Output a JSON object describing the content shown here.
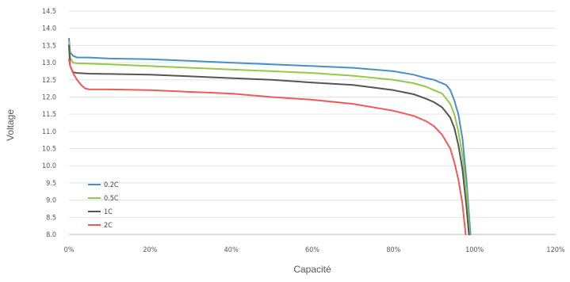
{
  "chart_data": {
    "type": "line",
    "title": "",
    "xlabel": "Capacité",
    "ylabel": "Voltage",
    "x_ticks": [
      "0%",
      "20%",
      "40%",
      "60%",
      "80%",
      "100%",
      "120%"
    ],
    "y_ticks": [
      "8.0",
      "8.5",
      "9.0",
      "9.5",
      "10.0",
      "10.5",
      "11.0",
      "11.5",
      "12.0",
      "12.5",
      "13.0",
      "13.5",
      "14.0",
      "14.5"
    ],
    "xlim": [
      0,
      120
    ],
    "ylim": [
      8.0,
      14.5
    ],
    "grid": "horizontal",
    "legend_position": "bottom-left",
    "series": [
      {
        "name": "0.2C",
        "color": "#4a8fc1",
        "x": [
          0,
          0.3,
          1,
          2,
          5,
          10,
          20,
          30,
          40,
          50,
          60,
          70,
          75,
          80,
          85,
          88,
          90,
          92,
          93,
          94,
          95,
          96,
          97,
          98,
          99
        ],
        "y": [
          13.7,
          13.3,
          13.2,
          13.15,
          13.15,
          13.12,
          13.1,
          13.05,
          13.0,
          12.95,
          12.9,
          12.85,
          12.8,
          12.75,
          12.65,
          12.55,
          12.5,
          12.4,
          12.35,
          12.2,
          11.9,
          11.5,
          10.8,
          9.6,
          8.0
        ]
      },
      {
        "name": "0.5C",
        "color": "#92c94a",
        "x": [
          0,
          0.3,
          1,
          2,
          5,
          10,
          20,
          30,
          40,
          50,
          60,
          70,
          80,
          85,
          88,
          90,
          92,
          94,
          95,
          96,
          97,
          98,
          98.8
        ],
        "y": [
          13.6,
          13.15,
          13.0,
          12.98,
          12.97,
          12.95,
          12.9,
          12.85,
          12.8,
          12.75,
          12.7,
          12.62,
          12.5,
          12.4,
          12.3,
          12.2,
          12.1,
          11.8,
          11.5,
          11.0,
          10.3,
          9.3,
          8.0
        ]
      },
      {
        "name": "1C",
        "color": "#555555",
        "x": [
          0,
          0.3,
          1,
          2,
          5,
          10,
          20,
          30,
          40,
          50,
          60,
          70,
          80,
          85,
          88,
          90,
          92,
          94,
          95,
          96,
          97,
          98,
          98.6
        ],
        "y": [
          13.5,
          12.9,
          12.72,
          12.7,
          12.68,
          12.67,
          12.65,
          12.6,
          12.55,
          12.5,
          12.42,
          12.35,
          12.2,
          12.08,
          11.95,
          11.85,
          11.7,
          11.4,
          11.1,
          10.6,
          9.9,
          8.8,
          8.0
        ]
      },
      {
        "name": "2C",
        "color": "#ee5a5a",
        "x": [
          0,
          0.3,
          1,
          2,
          3,
          4,
          5,
          10,
          20,
          30,
          40,
          50,
          60,
          70,
          80,
          85,
          88,
          90,
          92,
          94,
          95,
          96,
          97,
          97.8
        ],
        "y": [
          13.1,
          12.9,
          12.7,
          12.5,
          12.35,
          12.25,
          12.22,
          12.22,
          12.2,
          12.15,
          12.1,
          12.0,
          11.92,
          11.8,
          11.6,
          11.45,
          11.3,
          11.15,
          10.9,
          10.5,
          10.1,
          9.6,
          8.9,
          8.0
        ]
      }
    ]
  }
}
